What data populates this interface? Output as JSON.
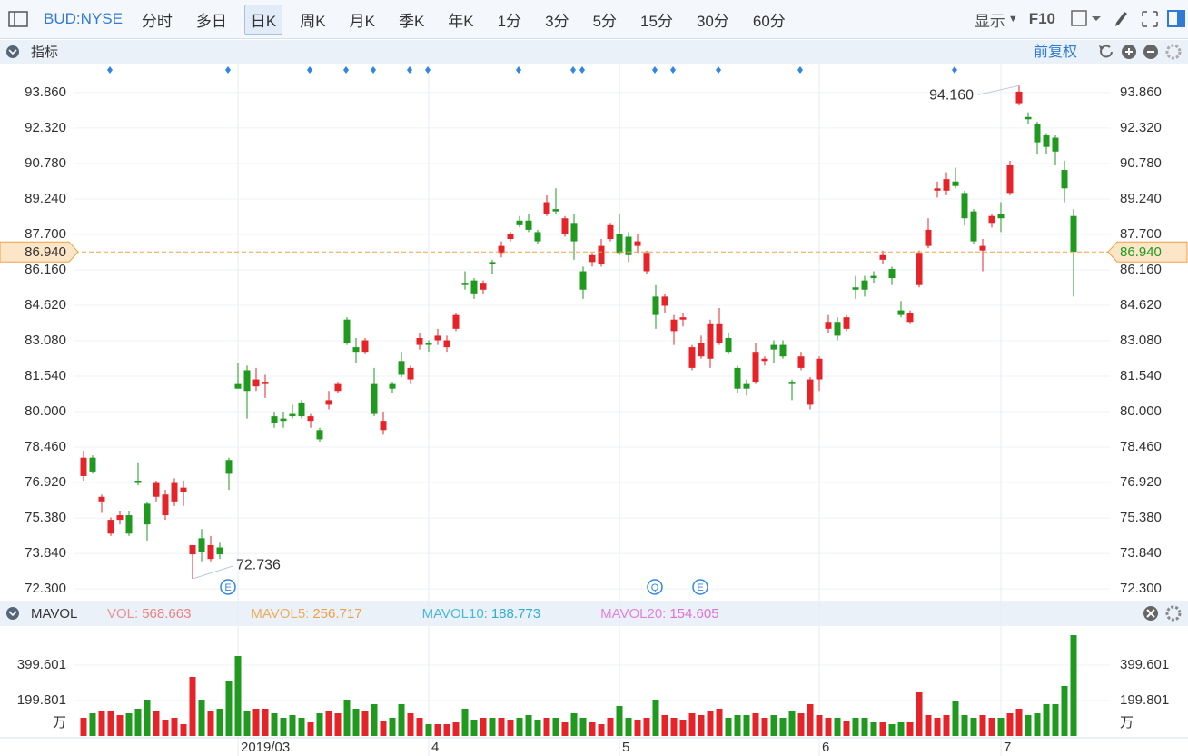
{
  "toolbar": {
    "symbol": "BUD:NYSE",
    "periods": [
      "分时",
      "多日",
      "日K",
      "周K",
      "月K",
      "季K",
      "年K",
      "1分",
      "3分",
      "5分",
      "15分",
      "30分",
      "60分"
    ],
    "active": 2,
    "display": "显示",
    "f10": "F10"
  },
  "chart_data": [
    {
      "type": "candlestick",
      "panel_title": "指标",
      "adjust": "前复权",
      "up_color": "#e5242a",
      "down_color": "#1f9a1f",
      "categories": [
        null,
        null,
        null,
        null,
        null,
        null,
        null,
        null,
        null,
        null,
        null,
        null,
        null,
        null,
        null,
        null,
        null,
        "2019/03",
        null,
        null,
        null,
        null,
        null,
        null,
        null,
        null,
        null,
        null,
        null,
        null,
        null,
        null,
        null,
        null,
        null,
        null,
        null,
        null,
        "4",
        null,
        null,
        null,
        null,
        null,
        null,
        null,
        null,
        null,
        null,
        null,
        null,
        null,
        null,
        null,
        null,
        null,
        null,
        null,
        null,
        "5",
        null,
        null,
        null,
        null,
        null,
        null,
        null,
        null,
        null,
        null,
        null,
        null,
        null,
        null,
        null,
        null,
        null,
        null,
        null,
        null,
        null,
        "6",
        null,
        null,
        null,
        null,
        null,
        null,
        null,
        null,
        null,
        null,
        null,
        null,
        null,
        null,
        null,
        null,
        null,
        null,
        null,
        "7",
        null,
        null,
        null,
        null,
        null,
        null,
        null,
        null
      ],
      "open": [
        77.2,
        78.0,
        76.1,
        74.7,
        75.3,
        75.5,
        77.0,
        76.0,
        76.3,
        75.5,
        76.1,
        76.5,
        73.8,
        74.5,
        73.6,
        74.1,
        77.9,
        81.2,
        81.8,
        81.1,
        81.2,
        79.8,
        79.7,
        79.9,
        80.4,
        79.6,
        79.2,
        80.3,
        80.9,
        84.0,
        82.8,
        82.6,
        81.2,
        79.2,
        81.2,
        82.2,
        81.4,
        82.9,
        83.0,
        83.1,
        82.8,
        83.6,
        85.6,
        85.7,
        85.3,
        86.5,
        86.9,
        87.5,
        88.3,
        88.3,
        87.8,
        88.6,
        88.8,
        87.7,
        88.2,
        86.1,
        86.5,
        86.4,
        87.5,
        87.7,
        87.6,
        87.2,
        86.1,
        85.0,
        84.6,
        83.5,
        84.0,
        81.9,
        82.4,
        82.3,
        83.0,
        83.2,
        81.9,
        81.2,
        81.3,
        82.2,
        82.9,
        82.9,
        81.3,
        81.9,
        80.3,
        81.4,
        83.6,
        83.9,
        83.6,
        85.4,
        85.7,
        85.9,
        86.6,
        86.2,
        84.4,
        83.9,
        85.5,
        87.2,
        89.6,
        89.6,
        90.0,
        89.5,
        88.7,
        87.0,
        88.2,
        88.6,
        89.5,
        93.4,
        92.8,
        92.5,
        92.0,
        91.9,
        90.5,
        88.5
      ],
      "high": [
        78.3,
        78.1,
        76.4,
        75.4,
        75.7,
        75.7,
        77.8,
        76.1,
        77.0,
        76.6,
        77.1,
        77.0,
        74.2,
        74.9,
        74.6,
        74.3,
        78.0,
        82.1,
        82.0,
        81.9,
        81.6,
        80.0,
        80.0,
        80.3,
        80.5,
        79.9,
        79.3,
        80.9,
        81.3,
        84.1,
        83.2,
        83.2,
        81.9,
        80.0,
        81.3,
        82.6,
        82.0,
        83.4,
        83.1,
        83.6,
        83.3,
        84.3,
        86.1,
        85.8,
        85.7,
        86.6,
        87.4,
        87.8,
        88.5,
        88.6,
        87.9,
        89.4,
        89.7,
        88.5,
        88.6,
        86.3,
        86.9,
        87.5,
        88.2,
        88.6,
        87.8,
        87.7,
        87.0,
        85.5,
        85.1,
        84.2,
        84.3,
        82.9,
        83.3,
        84.0,
        84.5,
        83.4,
        82.0,
        81.4,
        83.0,
        82.4,
        83.1,
        83.1,
        81.4,
        82.6,
        81.5,
        82.4,
        84.2,
        84.1,
        84.2,
        85.9,
        85.9,
        86.1,
        87.0,
        86.3,
        84.8,
        84.4,
        87.0,
        88.4,
        90.0,
        90.4,
        90.6,
        89.6,
        88.8,
        87.5,
        88.6,
        89.1,
        90.9,
        94.16,
        93.0,
        92.6,
        92.1,
        92.0,
        90.9,
        88.8
      ],
      "low": [
        77.0,
        77.3,
        75.6,
        74.6,
        75.1,
        74.6,
        76.8,
        74.4,
        76.1,
        75.3,
        75.9,
        75.9,
        72.736,
        73.5,
        73.5,
        73.6,
        76.6,
        81.0,
        79.7,
        80.9,
        80.6,
        79.3,
        79.3,
        79.7,
        79.7,
        79.3,
        78.7,
        80.1,
        80.8,
        82.9,
        82.1,
        82.5,
        79.8,
        79.0,
        80.8,
        81.5,
        81.2,
        82.7,
        82.6,
        82.9,
        82.6,
        83.5,
        85.3,
        84.9,
        85.1,
        86.0,
        86.7,
        87.4,
        88.0,
        87.8,
        87.3,
        88.5,
        88.6,
        87.6,
        86.6,
        84.9,
        86.3,
        86.3,
        87.4,
        86.8,
        86.5,
        86.9,
        86.0,
        83.6,
        84.3,
        82.9,
        83.7,
        81.8,
        82.3,
        81.9,
        82.9,
        82.5,
        80.8,
        80.7,
        81.2,
        82.0,
        82.1,
        82.3,
        80.5,
        81.8,
        80.1,
        80.9,
        83.4,
        83.1,
        83.5,
        84.9,
        85.0,
        85.6,
        86.4,
        85.5,
        84.1,
        83.8,
        85.4,
        87.1,
        89.3,
        89.4,
        89.7,
        88.1,
        87.3,
        86.1,
        88.0,
        87.8,
        89.4,
        93.3,
        92.5,
        91.2,
        91.2,
        90.7,
        89.1,
        85.0
      ],
      "close": [
        78.0,
        77.4,
        76.3,
        75.3,
        75.5,
        74.7,
        76.9,
        75.1,
        76.9,
        76.4,
        76.9,
        76.7,
        74.2,
        73.9,
        74.2,
        73.8,
        77.3,
        81.0,
        80.9,
        81.4,
        81.3,
        79.5,
        79.6,
        79.8,
        79.8,
        79.8,
        78.8,
        80.5,
        81.2,
        83.0,
        82.6,
        83.1,
        79.9,
        79.6,
        81.0,
        81.6,
        81.9,
        83.2,
        82.9,
        83.3,
        83.1,
        84.2,
        85.5,
        85.1,
        85.6,
        86.4,
        87.2,
        87.7,
        88.1,
        87.9,
        87.4,
        89.1,
        88.7,
        88.4,
        87.4,
        85.3,
        86.8,
        87.2,
        88.1,
        86.9,
        86.8,
        87.4,
        86.9,
        84.2,
        85.0,
        84.0,
        84.1,
        82.8,
        83.0,
        83.8,
        83.8,
        82.6,
        81.0,
        81.0,
        82.6,
        82.3,
        82.7,
        82.4,
        81.2,
        82.4,
        81.4,
        82.3,
        83.9,
        83.3,
        84.1,
        85.3,
        85.3,
        85.8,
        86.8,
        85.8,
        84.2,
        84.3,
        86.9,
        87.9,
        89.7,
        90.1,
        89.8,
        88.4,
        87.4,
        87.2,
        88.5,
        88.4,
        90.7,
        93.9,
        92.7,
        91.7,
        91.5,
        91.3,
        89.7,
        86.94
      ],
      "ylim": [
        71.83,
        95.12
      ],
      "yticks": [
        {
          "value": 72.3,
          "label": "72.300"
        },
        {
          "value": 73.84,
          "label": "73.840"
        },
        {
          "value": 75.38,
          "label": "75.380"
        },
        {
          "value": 76.92,
          "label": "76.920"
        },
        {
          "value": 78.46,
          "label": "78.460"
        },
        {
          "value": 80.0,
          "label": "80.000"
        },
        {
          "value": 81.54,
          "label": "81.540"
        },
        {
          "value": 83.08,
          "label": "83.080"
        },
        {
          "value": 84.62,
          "label": "84.620"
        },
        {
          "value": 86.16,
          "label": "86.160"
        },
        {
          "value": 87.7,
          "label": "87.700"
        },
        {
          "value": 89.24,
          "label": "89.240"
        },
        {
          "value": 90.78,
          "label": "90.780"
        },
        {
          "value": 92.32,
          "label": "92.320"
        },
        {
          "value": 93.86,
          "label": "93.860"
        }
      ],
      "last_price": {
        "value": 86.94,
        "label": "86.940"
      },
      "high_label": "94.160",
      "low_label": "72.736",
      "event_icons": [
        "E",
        "Q",
        "E"
      ]
    },
    {
      "type": "bar",
      "title": "MAVOL",
      "unit": "万",
      "legend": [
        {
          "name": "VOL:",
          "value": 568.663,
          "color": "#ef8080"
        },
        {
          "name": "MAVOL5:",
          "value": 256.717,
          "color": "#f0a040"
        },
        {
          "name": "MAVOL10:",
          "value": 188.773,
          "color": "#30aed0"
        },
        {
          "name": "MAVOL20:",
          "value": 154.605,
          "color": "#e070d8"
        }
      ],
      "values": [
        102.5,
        128.1,
        143.5,
        143.5,
        117.9,
        128.1,
        153.8,
        205,
        138.4,
        92.3,
        102.5,
        66.6,
        333.1,
        205,
        143.5,
        153.8,
        307.5,
        451,
        138.4,
        153.8,
        153.8,
        128.1,
        102.5,
        117.9,
        102.5,
        76.9,
        128.1,
        143.5,
        128.1,
        205,
        153.8,
        143.5,
        179.4,
        87.1,
        102.5,
        179.4,
        128.1,
        102.5,
        66.6,
        66.6,
        66.6,
        76.9,
        153.8,
        92.3,
        102.5,
        102.5,
        102.5,
        92.3,
        102.5,
        117.9,
        92.3,
        102.5,
        102.5,
        76.9,
        128.1,
        102.5,
        76.9,
        66.6,
        102.5,
        169.1,
        102.5,
        92.3,
        102.5,
        205,
        117.9,
        102.5,
        92.3,
        128.1,
        117.9,
        138.4,
        153.8,
        102.5,
        117.9,
        117.9,
        128.1,
        102.5,
        117.9,
        102.5,
        138.4,
        128.1,
        179.4,
        117.9,
        102.5,
        102.5,
        87.1,
        102.5,
        102.5,
        76.9,
        76.9,
        66.6,
        76.9,
        76.9,
        246,
        117.9,
        102.5,
        117.9,
        194.8,
        117.9,
        102.5,
        117.9,
        102.5,
        102.5,
        128.1,
        153.8,
        117.9,
        128.1,
        179.4,
        179.4,
        281.9,
        568.663
      ],
      "ylim": [
        0,
        615
      ],
      "yticks": [
        199.801,
        399.601
      ]
    }
  ]
}
